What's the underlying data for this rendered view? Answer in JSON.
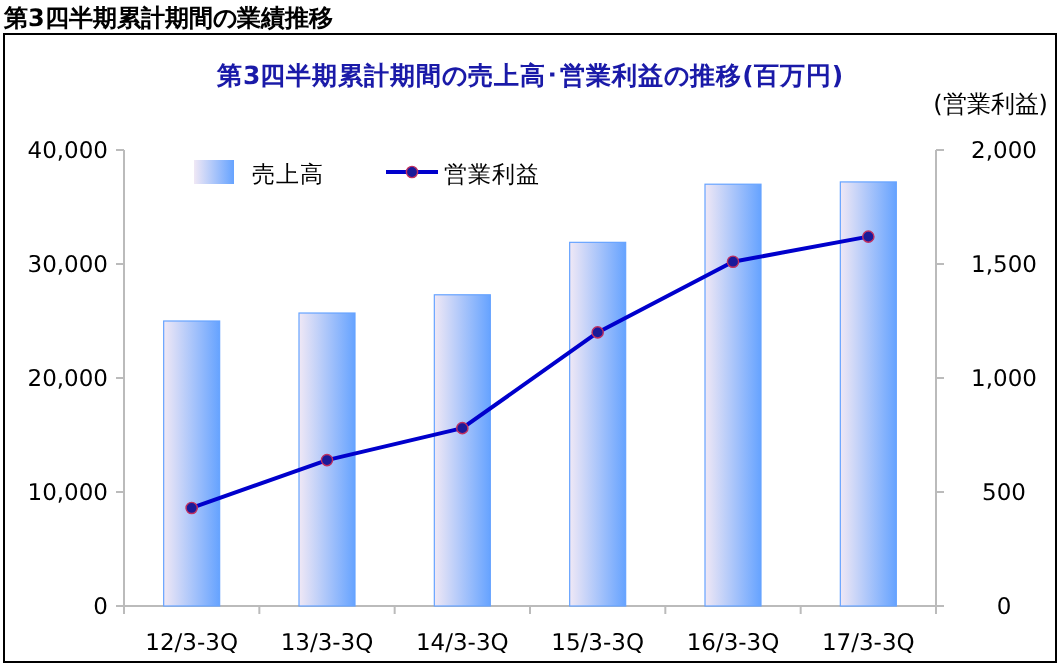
{
  "chart_data": {
    "type": "bar",
    "title": "第3四半期累計期間の売上高･営業利益の推移(百万円)",
    "y2label": "(営業利益)",
    "annotations": [
      "第3四半期累計期間の業績推移"
    ],
    "categories": [
      "12/3-3Q",
      "13/3-3Q",
      "14/3-3Q",
      "15/3-3Q",
      "16/3-3Q",
      "17/3-3Q"
    ],
    "series": [
      {
        "name": "売上高",
        "color": "#66a3ff",
        "values": [
          25000,
          25700,
          27300,
          31900,
          37000,
          37200
        ]
      },
      {
        "name": "営業利益",
        "type": "line",
        "axis": "y2",
        "color": "#0000cc",
        "marker": "circle",
        "values": [
          430,
          640,
          780,
          1200,
          1510,
          1620
        ]
      }
    ],
    "ylim": [
      0,
      40000
    ],
    "yticks": [
      {
        "value": 0,
        "label": "0"
      },
      {
        "value": 10000,
        "label": "10,000"
      },
      {
        "value": 20000,
        "label": "20,000"
      },
      {
        "value": 30000,
        "label": "30,000"
      },
      {
        "value": 40000,
        "label": "40,000"
      }
    ],
    "y2lim": [
      0,
      2000
    ],
    "y2ticks": [
      {
        "value": 0,
        "label": "0"
      },
      {
        "value": 500,
        "label": "500"
      },
      {
        "value": 1000,
        "label": "1,000"
      },
      {
        "value": 1500,
        "label": "1,500"
      },
      {
        "value": 2000,
        "label": "2,000"
      }
    ],
    "grid": false,
    "legend": "top left"
  }
}
